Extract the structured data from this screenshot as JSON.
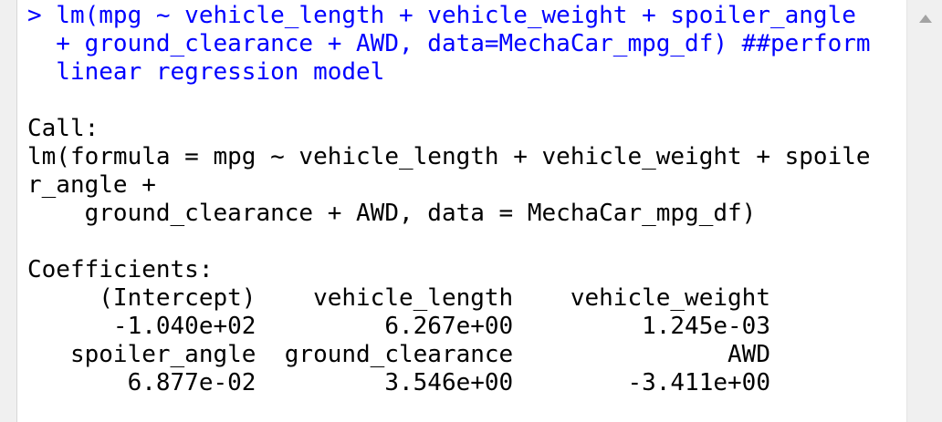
{
  "console": {
    "command_lines": [
      "> lm(mpg ~ vehicle_length + vehicle_weight + spoiler_angle",
      "  + ground_clearance + AWD, data=MechaCar_mpg_df) ##perform",
      "  linear regression model"
    ],
    "output_lines": [
      "",
      "Call:",
      "lm(formula = mpg ~ vehicle_length + vehicle_weight + spoile",
      "r_angle + ",
      "    ground_clearance + AWD, data = MechaCar_mpg_df)",
      "",
      "Coefficients:",
      "     (Intercept)    vehicle_length    vehicle_weight",
      "      -1.040e+02         6.267e+00         1.245e-03",
      "   spoiler_angle  ground_clearance               AWD",
      "       6.877e-02         3.546e+00        -3.411e+00"
    ]
  },
  "scrollbar": {
    "up_icon": "triangle-up-icon"
  },
  "colors": {
    "command": "#0000ff",
    "output": "#000000",
    "scrollbar_bg": "#f0f0f0",
    "arrow": "#a3a3a3"
  }
}
